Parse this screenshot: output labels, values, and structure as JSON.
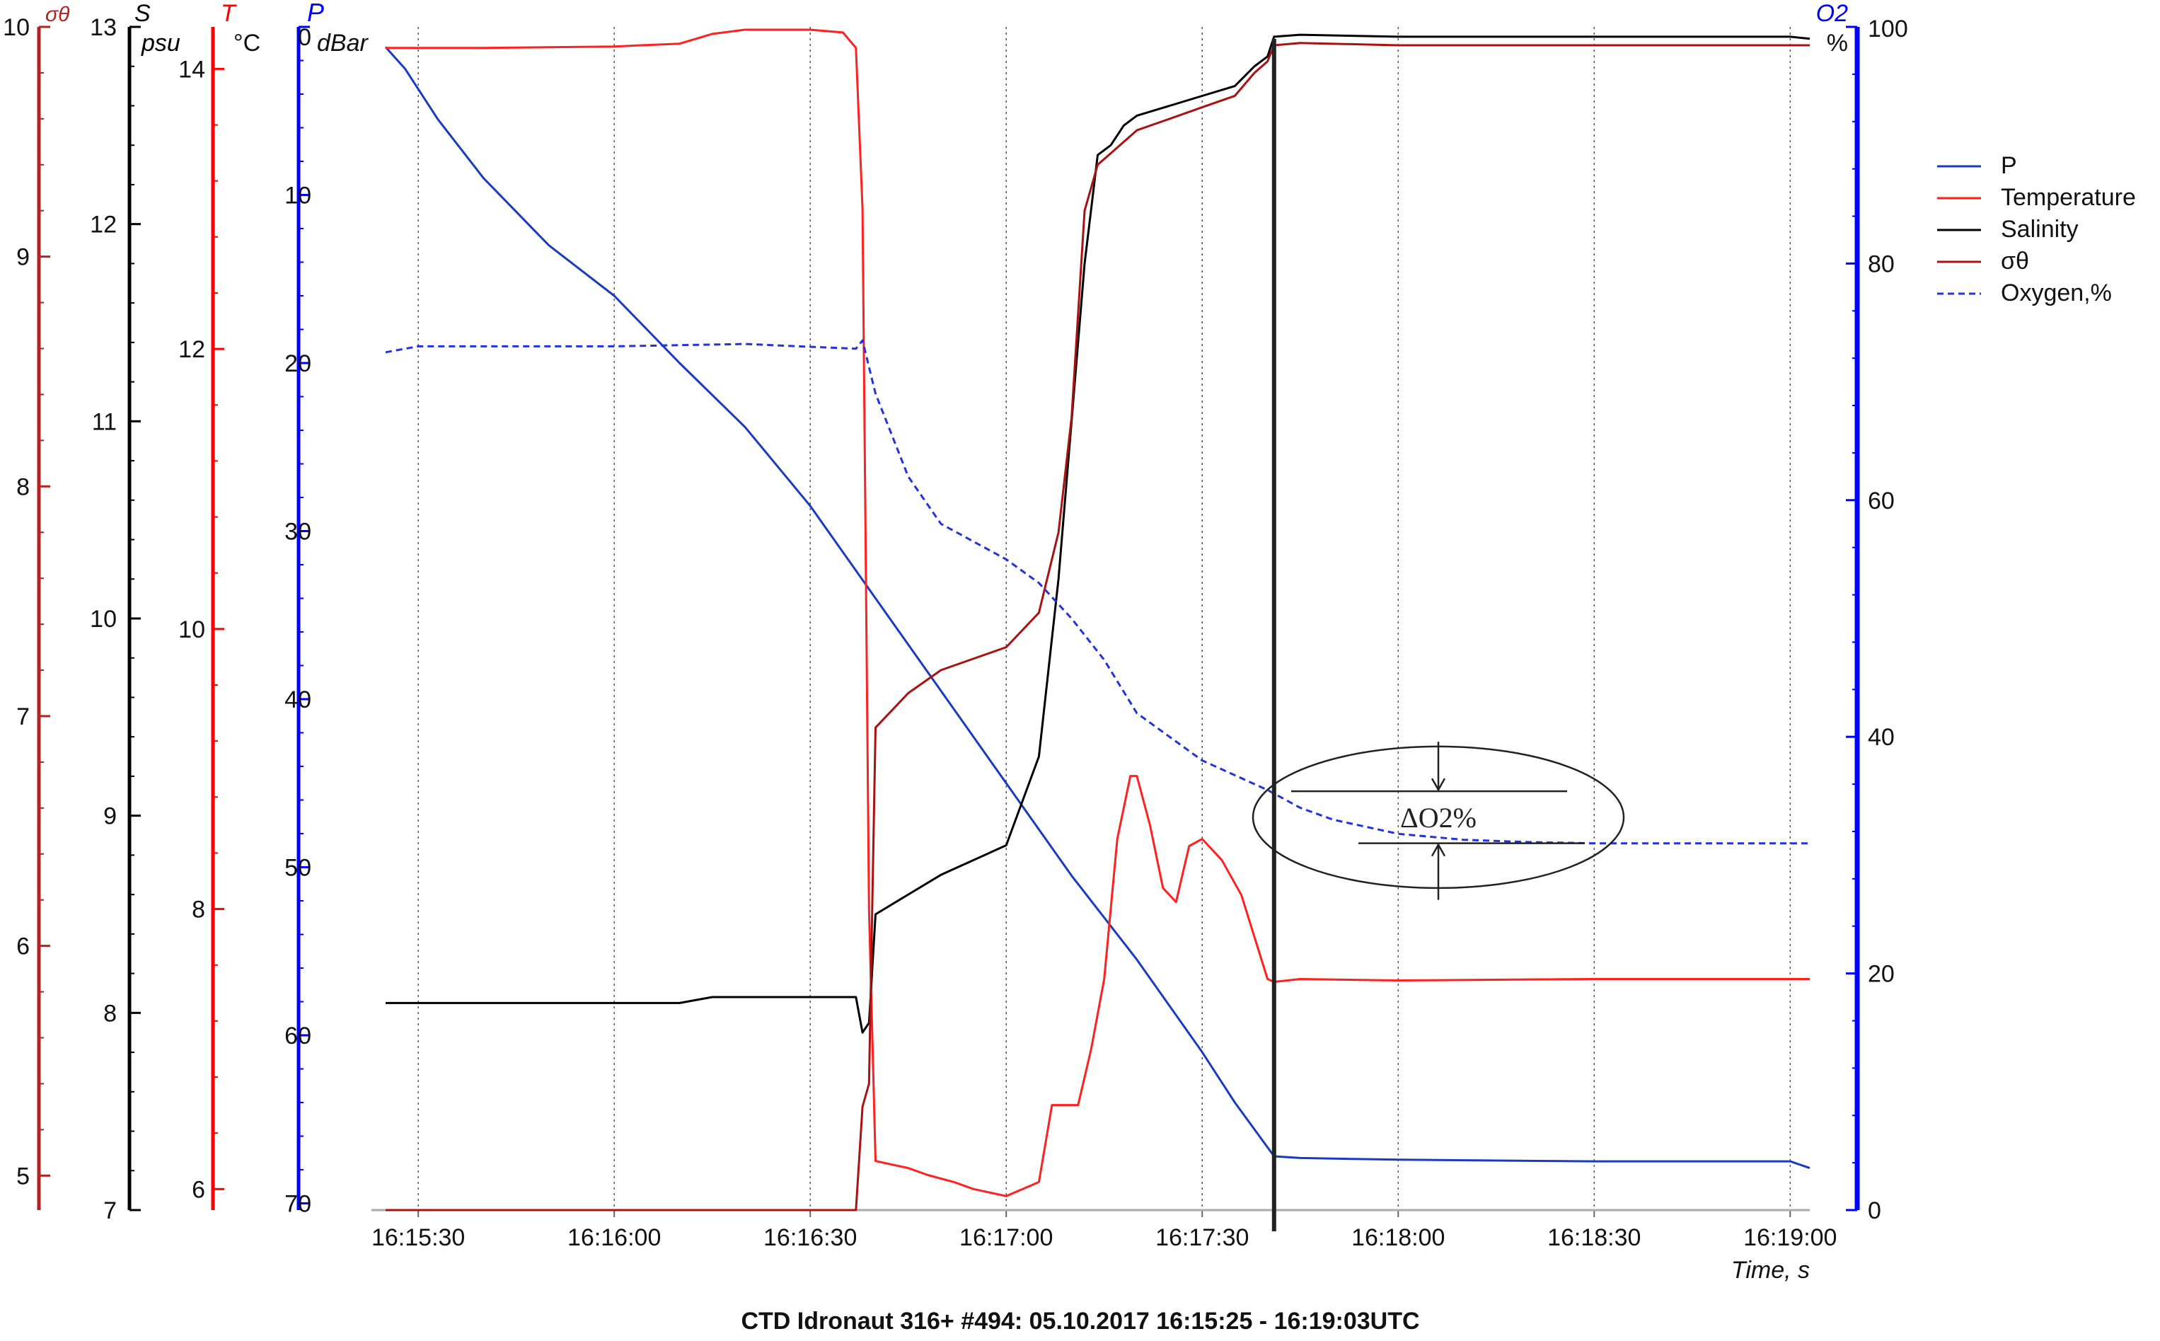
{
  "chart_data": {
    "type": "line",
    "title": "CTD Idronaut 316+ #494: 05.10.2017 16:15:25 - 16:19:03UTC",
    "xlabel": "Time, s",
    "x_ticks": [
      "16:15:30",
      "16:16:00",
      "16:16:30",
      "16:17:00",
      "16:17:30",
      "16:18:00",
      "16:18:30",
      "16:19:00"
    ],
    "x_range": [
      "16:15:25",
      "16:19:03"
    ],
    "grid": "vertical dotted lines at each x tick",
    "legend_position": "top-right",
    "axes": {
      "sigma": {
        "label": "σθ",
        "unit": "",
        "ticks": [
          "10",
          "9",
          "8",
          "7",
          "6",
          "5"
        ],
        "range": [
          4.85,
          10
        ],
        "color": "#b22222"
      },
      "salinity": {
        "label": "S",
        "unit": "psu",
        "ticks": [
          "13",
          "12",
          "11",
          "10",
          "9",
          "8",
          "7"
        ],
        "range": [
          7,
          13
        ],
        "color": "#000000"
      },
      "temperature": {
        "label": "T",
        "unit": "°C",
        "ticks": [
          "14",
          "12",
          "10",
          "8",
          "6"
        ],
        "range": [
          5.85,
          14.3
        ],
        "color": "#ff0000"
      },
      "pressure": {
        "label": "P",
        "unit": "dBar",
        "ticks": [
          "0",
          "10",
          "20",
          "30",
          "40",
          "50",
          "60",
          "70"
        ],
        "range": [
          0,
          70.4
        ],
        "reversed": true,
        "color": "#0000ff"
      },
      "oxygen": {
        "label": "O2",
        "unit": "%",
        "ticks": [
          "100",
          "80",
          "60",
          "40",
          "20",
          "0"
        ],
        "range": [
          0,
          100
        ],
        "color": "#0000ff"
      }
    },
    "legend": [
      "P",
      "Temperature",
      "Salinity",
      "σθ",
      "Oxygen,%"
    ],
    "series": [
      {
        "name": "P",
        "axis": "pressure",
        "color": "#1a3bbf",
        "style": "solid",
        "x": [
          "16:15:25",
          "16:15:28",
          "16:15:33",
          "16:15:40",
          "16:15:45",
          "16:15:50",
          "16:16:00",
          "16:16:10",
          "16:16:20",
          "16:16:30",
          "16:16:40",
          "16:16:50",
          "16:17:00",
          "16:17:10",
          "16:17:20",
          "16:17:30",
          "16:17:35",
          "16:17:41",
          "16:17:45",
          "16:18:00",
          "16:18:30",
          "16:19:00",
          "16:19:03"
        ],
        "y": [
          1.2,
          2.5,
          5.5,
          9,
          11,
          13,
          16,
          20,
          23.8,
          28.5,
          34,
          39.5,
          45,
          50.5,
          55.5,
          61,
          64,
          67.2,
          67.3,
          67.4,
          67.5,
          67.5,
          67.9
        ]
      },
      {
        "name": "Temperature",
        "axis": "temperature",
        "color": "#ff2020",
        "style": "solid",
        "x": [
          "16:15:25",
          "16:15:40",
          "16:16:00",
          "16:16:10",
          "16:16:15",
          "16:16:20",
          "16:16:30",
          "16:16:35",
          "16:16:37",
          "16:16:38",
          "16:16:39",
          "16:16:40",
          "16:16:45",
          "16:16:48",
          "16:16:52",
          "16:16:55",
          "16:17:00",
          "16:17:05",
          "16:17:07",
          "16:17:09",
          "16:17:11",
          "16:17:13",
          "16:17:15",
          "16:17:17",
          "16:17:19",
          "16:17:20",
          "16:17:22",
          "16:17:24",
          "16:17:26",
          "16:17:27",
          "16:17:28",
          "16:17:30",
          "16:17:33",
          "16:17:36",
          "16:17:38",
          "16:17:40",
          "16:17:41",
          "16:17:45",
          "16:18:00",
          "16:18:30",
          "16:19:00",
          "16:19:03"
        ],
        "y": [
          14.15,
          14.15,
          14.16,
          14.18,
          14.25,
          14.28,
          14.28,
          14.26,
          14.15,
          13,
          8,
          6.2,
          6.15,
          6.1,
          6.05,
          6,
          5.95,
          6.05,
          6.6,
          6.6,
          6.6,
          7,
          7.5,
          8.5,
          8.95,
          8.95,
          8.6,
          8.15,
          8.05,
          8.25,
          8.45,
          8.5,
          8.35,
          8.1,
          7.8,
          7.5,
          7.48,
          7.5,
          7.49,
          7.5,
          7.5,
          7.5
        ]
      },
      {
        "name": "Salinity",
        "axis": "salinity",
        "color": "#000000",
        "style": "solid",
        "x": [
          "16:15:25",
          "16:16:00",
          "16:16:10",
          "16:16:15",
          "16:16:37",
          "16:16:38",
          "16:16:39",
          "16:16:40",
          "16:16:45",
          "16:16:50",
          "16:17:00",
          "16:17:05",
          "16:17:08",
          "16:17:10",
          "16:17:12",
          "16:17:14",
          "16:17:16",
          "16:17:18",
          "16:17:20",
          "16:17:25",
          "16:17:30",
          "16:17:35",
          "16:17:38",
          "16:17:40",
          "16:17:41",
          "16:17:45",
          "16:18:00",
          "16:18:30",
          "16:19:00",
          "16:19:03"
        ],
        "y": [
          8.05,
          8.05,
          8.05,
          8.08,
          8.08,
          7.9,
          7.95,
          8.5,
          8.6,
          8.7,
          8.85,
          9.3,
          10.2,
          11,
          11.8,
          12.35,
          12.4,
          12.5,
          12.55,
          12.6,
          12.65,
          12.7,
          12.8,
          12.85,
          12.95,
          12.96,
          12.95,
          12.95,
          12.95,
          12.94
        ]
      },
      {
        "name": "σθ",
        "axis": "sigma",
        "color": "#aa1111",
        "style": "solid",
        "x": [
          "16:15:25",
          "16:16:00",
          "16:16:10",
          "16:16:37",
          "16:16:38",
          "16:16:39",
          "16:16:40",
          "16:16:45",
          "16:16:50",
          "16:17:00",
          "16:17:05",
          "16:17:08",
          "16:17:10",
          "16:17:12",
          "16:17:14",
          "16:17:16",
          "16:17:20",
          "16:17:25",
          "16:17:30",
          "16:17:35",
          "16:17:38",
          "16:17:40",
          "16:17:41",
          "16:17:45",
          "16:18:00",
          "16:18:30",
          "16:19:00",
          "16:19:03"
        ],
        "y": [
          4.85,
          4.85,
          4.85,
          4.85,
          5.3,
          5.4,
          6.95,
          7.1,
          7.2,
          7.3,
          7.45,
          7.8,
          8.3,
          9.2,
          9.4,
          9.45,
          9.55,
          9.6,
          9.65,
          9.7,
          9.8,
          9.85,
          9.92,
          9.93,
          9.92,
          9.92,
          9.92,
          9.92
        ]
      },
      {
        "name": "Oxygen,%",
        "axis": "oxygen",
        "color": "#2233dd",
        "style": "dashed",
        "x": [
          "16:15:25",
          "16:15:30",
          "16:16:00",
          "16:16:20",
          "16:16:37",
          "16:16:38",
          "16:16:40",
          "16:16:45",
          "16:16:50",
          "16:17:00",
          "16:17:05",
          "16:17:10",
          "16:17:15",
          "16:17:20",
          "16:17:30",
          "16:17:40",
          "16:17:45",
          "16:17:50",
          "16:18:00",
          "16:18:10",
          "16:18:20",
          "16:18:30",
          "16:19:00",
          "16:19:03"
        ],
        "y": [
          72.5,
          73,
          73,
          73.2,
          72.8,
          73.5,
          69,
          62,
          58,
          55,
          53,
          50,
          46.5,
          42,
          38,
          35.5,
          34,
          33,
          31.8,
          31.3,
          31.1,
          31,
          31,
          31
        ]
      }
    ],
    "annotations": [
      {
        "type": "vertical_line",
        "x": "16:17:41"
      },
      {
        "type": "ellipse_callout",
        "text": "ΔO2%"
      }
    ]
  }
}
